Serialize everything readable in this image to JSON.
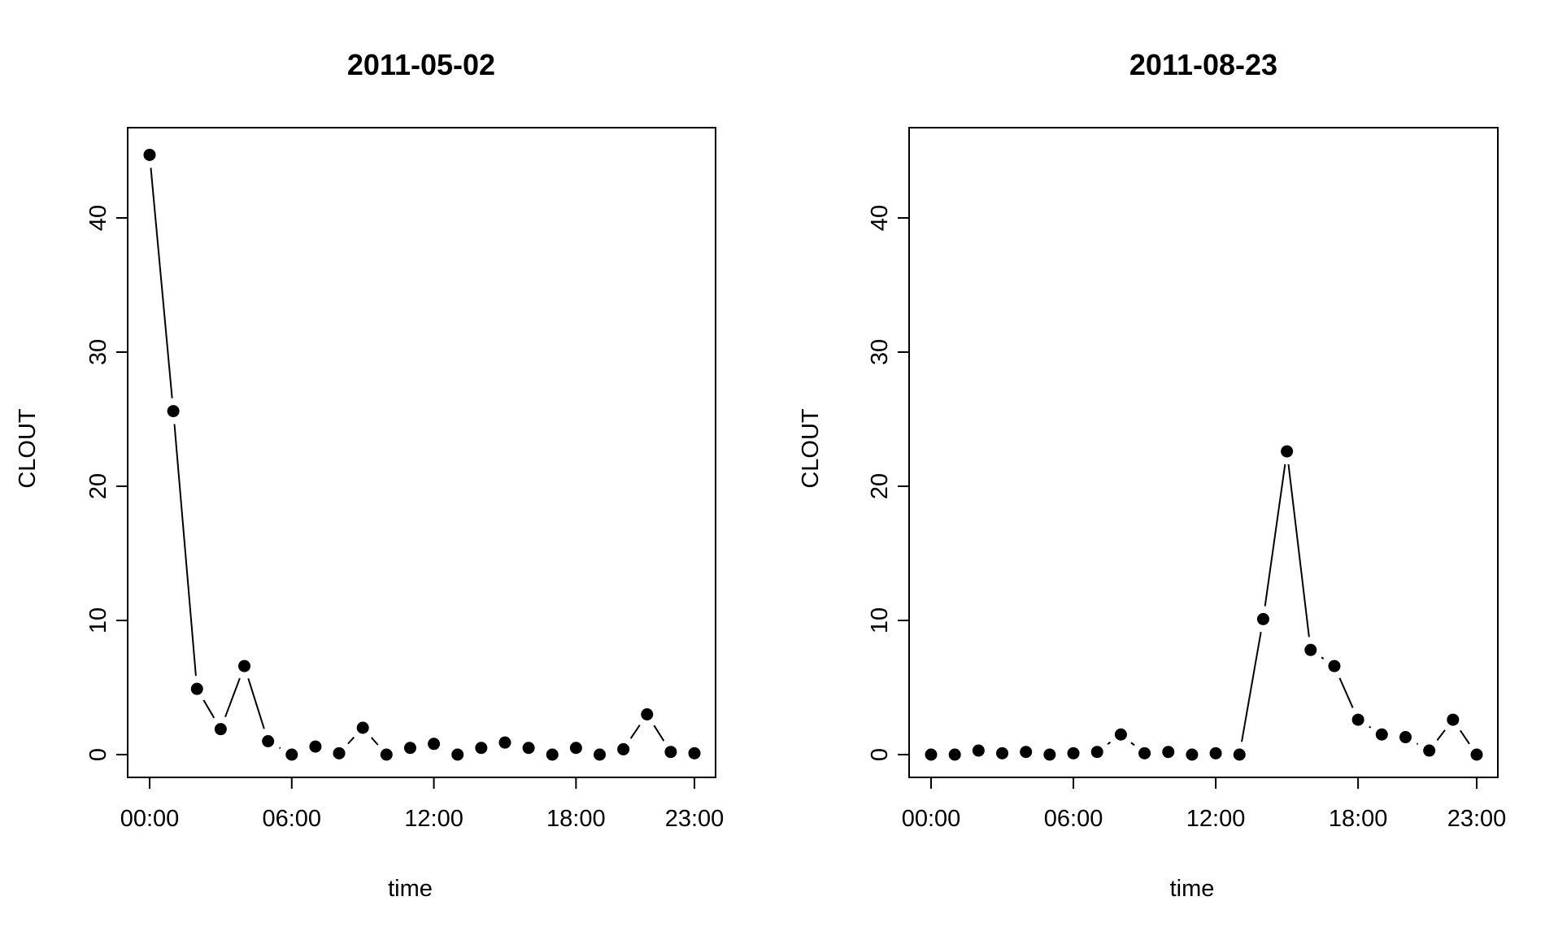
{
  "chart_data": [
    {
      "type": "line",
      "title": "2011-05-02",
      "xlabel": "time",
      "ylabel": "CLOUT",
      "x": [
        0,
        1,
        2,
        3,
        4,
        5,
        6,
        7,
        8,
        9,
        10,
        11,
        12,
        13,
        14,
        15,
        16,
        17,
        18,
        19,
        20,
        21,
        22,
        23
      ],
      "xlim": [
        0,
        23
      ],
      "ylim": [
        0,
        45
      ],
      "x_ticks": [
        0,
        6,
        12,
        18,
        23
      ],
      "x_tick_labels": [
        "00:00",
        "06:00",
        "12:00",
        "18:00",
        "23:00"
      ],
      "y_ticks": [
        0,
        10,
        20,
        30,
        40
      ],
      "y_tick_labels": [
        "0",
        "10",
        "20",
        "30",
        "40"
      ],
      "series": [
        {
          "values": [
            44.7,
            25.6,
            4.9,
            1.9,
            6.6,
            1.0,
            0.0,
            0.6,
            0.1,
            2.0,
            0.0,
            0.5,
            0.8,
            0.0,
            0.5,
            0.9,
            0.5,
            0.0,
            0.5,
            0.0,
            0.4,
            3.0,
            0.2,
            0.1
          ]
        }
      ],
      "marker": "filled-circle",
      "line_color": "#000000"
    },
    {
      "type": "line",
      "title": "2011-08-23",
      "xlabel": "time",
      "ylabel": "CLOUT",
      "x": [
        0,
        1,
        2,
        3,
        4,
        5,
        6,
        7,
        8,
        9,
        10,
        11,
        12,
        13,
        14,
        15,
        16,
        17,
        18,
        19,
        20,
        21,
        22,
        23
      ],
      "xlim": [
        0,
        23
      ],
      "ylim": [
        0,
        45
      ],
      "x_ticks": [
        0,
        6,
        12,
        18,
        23
      ],
      "x_tick_labels": [
        "00:00",
        "06:00",
        "12:00",
        "18:00",
        "23:00"
      ],
      "y_ticks": [
        0,
        10,
        20,
        30,
        40
      ],
      "y_tick_labels": [
        "0",
        "10",
        "20",
        "30",
        "40"
      ],
      "series": [
        {
          "values": [
            0.0,
            0.0,
            0.3,
            0.1,
            0.2,
            0.0,
            0.1,
            0.2,
            1.5,
            0.1,
            0.2,
            0.0,
            0.1,
            0.0,
            10.1,
            22.6,
            7.8,
            6.6,
            2.6,
            1.5,
            1.3,
            0.3,
            2.6,
            0.0
          ]
        }
      ],
      "marker": "filled-circle",
      "line_color": "#000000"
    }
  ]
}
